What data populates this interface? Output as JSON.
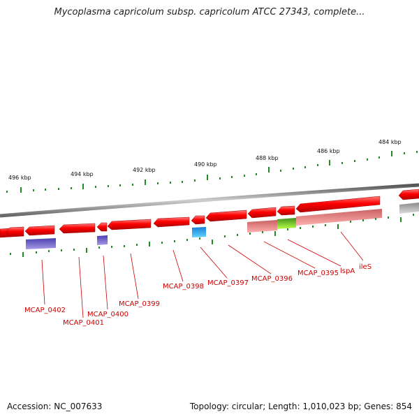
{
  "title": "Mycoplasma capricolum subsp. capricolum ATCC 27343, complete...",
  "footer": {
    "accession": "Accession: NC_007633",
    "topology": "Topology: circular; Length: 1,010,023 bp; Genes: 854"
  },
  "ruler_labels": [
    "496 kbp",
    "494 kbp",
    "492 kbp",
    "490 kbp",
    "488 kbp",
    "486 kbp",
    "484 kbp"
  ],
  "gene_labels": [
    "MCAP_0402",
    "MCAP_0401",
    "MCAP_0400",
    "MCAP_0399",
    "MCAP_0398",
    "MCAP_0397",
    "MCAP_0396",
    "MCAP_0395",
    "lspA",
    "ileS"
  ],
  "colors": {
    "gene": "#ff0000",
    "backbone": "#888888",
    "ticks": "#228b22",
    "label": "#cc0000",
    "feature_purple": "#6a5acd",
    "feature_cyan": "#1e90ff",
    "feature_pink": "#f08080",
    "feature_green": "#7cfc00",
    "feature_grey": "#b0b0b0"
  }
}
